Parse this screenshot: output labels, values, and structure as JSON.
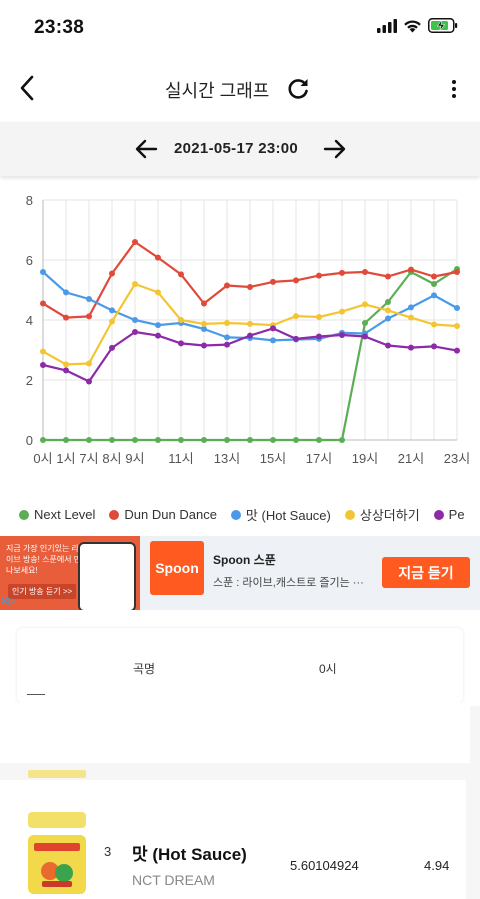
{
  "status": {
    "time": "23:38",
    "icons": [
      "signal-icon",
      "wifi-icon",
      "battery-charging-icon"
    ]
  },
  "nav": {
    "title": "실시간 그래프",
    "icons": [
      "back-icon",
      "refresh-icon",
      "more-icon"
    ]
  },
  "date_bar": {
    "date": "2021-05-17 23:00"
  },
  "chart_data": {
    "type": "line",
    "xlabel": "",
    "ylabel": "",
    "ylim": [
      0,
      8
    ],
    "y_ticks": [
      "0",
      "2",
      "4",
      "6",
      "8"
    ],
    "x_ticks": [
      "0시",
      "1시",
      "7시",
      "8시",
      "9시",
      "11시",
      "13시",
      "15시",
      "17시",
      "19시",
      "21시",
      "23시"
    ],
    "categories": [
      "0시",
      "1시",
      "7시",
      "8시",
      "9시",
      "10시",
      "11시",
      "12시",
      "13시",
      "14시",
      "15시",
      "16시",
      "17시",
      "18시",
      "19시",
      "20시",
      "21시",
      "22시",
      "23시"
    ],
    "grid": true,
    "legend_position": "bottom",
    "series": [
      {
        "name": "Next Level",
        "color": "#5cae55",
        "values": [
          0,
          0,
          0,
          0,
          0,
          0,
          0,
          0,
          0,
          0,
          0,
          0,
          0,
          0,
          3.9,
          4.6,
          5.6,
          5.2,
          5.7
        ]
      },
      {
        "name": "Dun Dun Dance",
        "color": "#e04a3a",
        "values": [
          4.55,
          4.08,
          4.12,
          5.55,
          6.6,
          6.08,
          5.52,
          4.55,
          5.15,
          5.1,
          5.27,
          5.32,
          5.48,
          5.57,
          5.6,
          5.45,
          5.68,
          5.45,
          5.6
        ]
      },
      {
        "name": "맛 (Hot Sauce)",
        "color": "#4b9ae8",
        "values": [
          5.6,
          4.92,
          4.7,
          4.32,
          4.0,
          3.83,
          3.9,
          3.7,
          3.42,
          3.4,
          3.32,
          3.35,
          3.37,
          3.57,
          3.55,
          4.05,
          4.42,
          4.82,
          4.4
        ]
      },
      {
        "name": "상상더하기",
        "color": "#f4c533",
        "values": [
          2.95,
          2.52,
          2.55,
          3.95,
          5.2,
          4.92,
          4.0,
          3.87,
          3.9,
          3.87,
          3.83,
          4.13,
          4.1,
          4.28,
          4.52,
          4.32,
          4.08,
          3.85,
          3.8
        ]
      },
      {
        "name": "Pe",
        "color": "#8d2aa8",
        "values": [
          2.5,
          2.32,
          1.95,
          3.07,
          3.6,
          3.48,
          3.22,
          3.15,
          3.18,
          3.48,
          3.72,
          3.37,
          3.45,
          3.5,
          3.45,
          3.15,
          3.08,
          3.12,
          2.98
        ]
      }
    ]
  },
  "ad": {
    "left_text": "지금 가장 인기있는 라이브 방송! 스푼에서 만나보세요!",
    "left_btn": "인기 방송 듣기 >>",
    "logo_text": "Spoon",
    "name": "Spoon 스푼",
    "desc": "스푼 : 라이브,캐스트로 즐기는 ···",
    "cta": "지금 듣기"
  },
  "table": {
    "header_song": "곡명",
    "header_hour": "0시"
  },
  "rows": [
    {
      "rank": "3",
      "title": "맛 (Hot Sauce)",
      "artist": "NCT DREAM",
      "value_0": "5.60104924",
      "value_1": "4.94"
    }
  ],
  "colors": {
    "accent": "#ff5a1f",
    "date_bar_bg": "#f4f4f4"
  }
}
